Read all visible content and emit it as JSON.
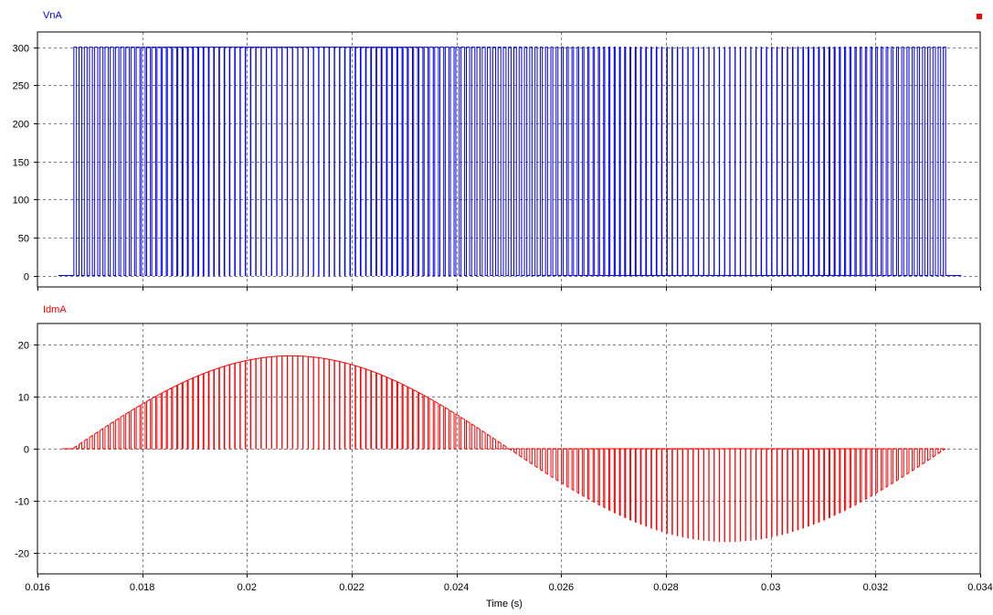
{
  "colors": {
    "vna": "#0000ff",
    "idma": "#ff0000",
    "grid": "#808080",
    "indicator": "#ff0000"
  },
  "chart_data": [
    {
      "type": "line",
      "title": "VnA",
      "xlabel": "Time (s)",
      "ylabel": "",
      "xlim": [
        0.016,
        0.034
      ],
      "ylim": [
        -15,
        320
      ],
      "yticks": [
        0,
        50,
        100,
        150,
        200,
        250,
        300
      ],
      "xticks": [
        0.016,
        0.018,
        0.02,
        0.022,
        0.024,
        0.026,
        0.028,
        0.03,
        0.032,
        0.034
      ],
      "grid": true,
      "series": [
        {
          "signal": "pwm",
          "t_start": 0.01667,
          "t_end": 0.03334,
          "low": 0,
          "high": 300,
          "carrier_hz": 10000,
          "modulation_index": 0.9,
          "reference_hz": 60
        }
      ]
    },
    {
      "type": "line",
      "title": "IdmA",
      "xlabel": "Time (s)",
      "ylabel": "",
      "xlim": [
        0.016,
        0.034
      ],
      "ylim": [
        -24,
        24
      ],
      "yticks": [
        -20,
        -10,
        0,
        10,
        20
      ],
      "xticks": [
        0.016,
        0.018,
        0.02,
        0.022,
        0.024,
        0.026,
        0.028,
        0.03,
        0.032,
        0.034
      ],
      "grid": true,
      "series": [
        {
          "signal": "chopped-sine",
          "t_start": 0.01667,
          "t_end": 0.03334,
          "peak": 17.8,
          "peak_time": 0.02092,
          "carrier_hz": 10000,
          "modulation_index": 0.9,
          "reference_hz": 60
        }
      ]
    }
  ],
  "x_tick_labels": [
    "0.016",
    "0.018",
    "0.02",
    "0.022",
    "0.024",
    "0.026",
    "0.028",
    "0.03",
    "0.032",
    "0.034"
  ]
}
